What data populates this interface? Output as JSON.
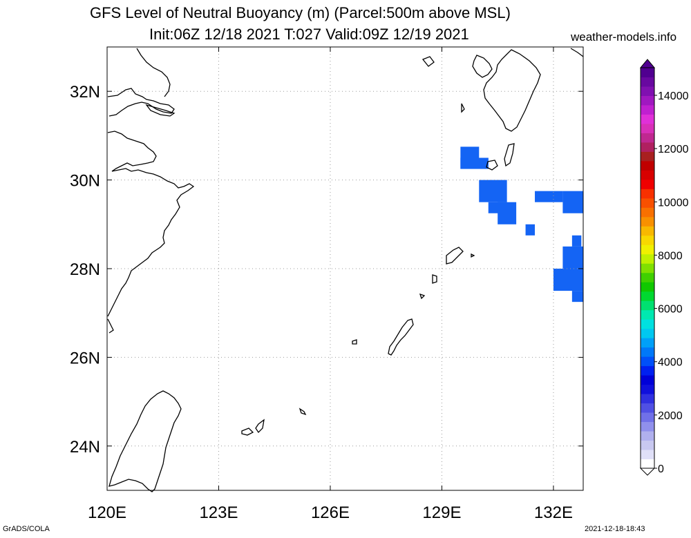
{
  "title": {
    "line1": "GFS Level of Neutral Buoyancy (m) (Parcel:500m above MSL)",
    "line2": "Init:06Z 12/18 2021 T:027 Valid:09Z 12/19 2021"
  },
  "site_label": "weather-models.info",
  "footer": {
    "left": "GrADS/COLA",
    "right": "2021-12-18-18:43"
  },
  "map": {
    "lon_range": [
      120,
      132.8
    ],
    "lat_range": [
      23,
      33
    ],
    "lon_ticks": [
      120,
      123,
      126,
      129,
      132
    ],
    "lon_tick_labels": [
      "120E",
      "123E",
      "126E",
      "129E",
      "132E"
    ],
    "lat_ticks": [
      24,
      26,
      28,
      30,
      32
    ],
    "lat_tick_labels": [
      "24N",
      "26N",
      "28N",
      "30N",
      "32N"
    ],
    "grid": true,
    "shaded_color": "#1464f4",
    "shaded_cells_lonlat": [
      [
        129.5,
        30.5,
        130.0,
        30.75
      ],
      [
        129.5,
        30.25,
        130.25,
        30.5
      ],
      [
        129.5,
        30.25,
        130.25,
        30.5
      ],
      [
        130.0,
        29.5,
        130.75,
        30.0
      ],
      [
        130.25,
        29.25,
        130.75,
        29.5
      ],
      [
        130.5,
        29.0,
        131.0,
        29.5
      ],
      [
        131.25,
        28.75,
        131.5,
        29.0
      ],
      [
        131.5,
        29.5,
        132.25,
        29.75
      ],
      [
        132.25,
        29.25,
        132.8,
        29.75
      ],
      [
        132.5,
        28.5,
        132.75,
        28.75
      ],
      [
        132.25,
        28.0,
        132.8,
        28.5
      ],
      [
        132.0,
        27.5,
        132.8,
        28.0
      ],
      [
        132.5,
        27.25,
        132.8,
        27.5
      ]
    ]
  },
  "colorbar": {
    "labels": [
      "0",
      "2000",
      "4000",
      "6000",
      "8000",
      "10000",
      "12000",
      "14000"
    ],
    "colors": [
      "#ffffff",
      "#e0e0f8",
      "#c8c8f0",
      "#b0b0ee",
      "#9090ec",
      "#7070e8",
      "#5050e4",
      "#3030e0",
      "#1010dc",
      "#0000d8",
      "#0020f0",
      "#0050f8",
      "#0078f8",
      "#00a0f8",
      "#00c8f0",
      "#00e0e0",
      "#00e8b0",
      "#00e070",
      "#00d830",
      "#10c800",
      "#40d000",
      "#80e000",
      "#c0f000",
      "#f0f000",
      "#f8d800",
      "#f8b800",
      "#f89000",
      "#f87000",
      "#f85000",
      "#f83000",
      "#f00000",
      "#d80000",
      "#c00000",
      "#a82020",
      "#b02060",
      "#c02890",
      "#d830b8",
      "#e030d8",
      "#c020d0",
      "#a018c0",
      "#8010b0",
      "#6808a0",
      "#500090"
    ]
  }
}
